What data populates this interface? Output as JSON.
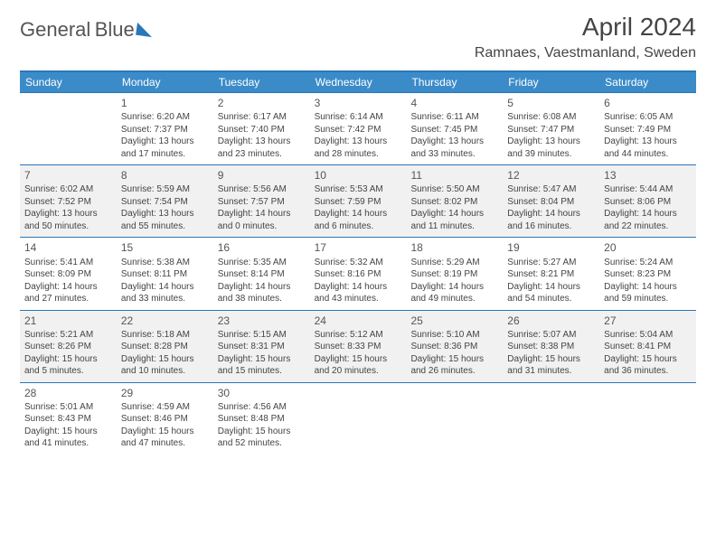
{
  "brand": {
    "line1": "General",
    "line2": "Blue"
  },
  "title": "April 2024",
  "location": "Ramnaes, Vaestmanland, Sweden",
  "day_headers": [
    "Sunday",
    "Monday",
    "Tuesday",
    "Wednesday",
    "Thursday",
    "Friday",
    "Saturday"
  ],
  "colors": {
    "header_bar": "#3b8bc9",
    "rule": "#2a77b8",
    "shaded_row_bg": "#f1f1f1",
    "text": "#444444",
    "background": "#ffffff"
  },
  "typography": {
    "title_fontsize": 28,
    "location_fontsize": 16,
    "dow_fontsize": 12,
    "daynum_fontsize": 12,
    "cell_fontsize": 10
  },
  "weeks": [
    {
      "shaded": false,
      "days": [
        null,
        {
          "n": "1",
          "sunrise": "6:20 AM",
          "sunset": "7:37 PM",
          "daylight": "13 hours and 17 minutes."
        },
        {
          "n": "2",
          "sunrise": "6:17 AM",
          "sunset": "7:40 PM",
          "daylight": "13 hours and 23 minutes."
        },
        {
          "n": "3",
          "sunrise": "6:14 AM",
          "sunset": "7:42 PM",
          "daylight": "13 hours and 28 minutes."
        },
        {
          "n": "4",
          "sunrise": "6:11 AM",
          "sunset": "7:45 PM",
          "daylight": "13 hours and 33 minutes."
        },
        {
          "n": "5",
          "sunrise": "6:08 AM",
          "sunset": "7:47 PM",
          "daylight": "13 hours and 39 minutes."
        },
        {
          "n": "6",
          "sunrise": "6:05 AM",
          "sunset": "7:49 PM",
          "daylight": "13 hours and 44 minutes."
        }
      ]
    },
    {
      "shaded": true,
      "days": [
        {
          "n": "7",
          "sunrise": "6:02 AM",
          "sunset": "7:52 PM",
          "daylight": "13 hours and 50 minutes."
        },
        {
          "n": "8",
          "sunrise": "5:59 AM",
          "sunset": "7:54 PM",
          "daylight": "13 hours and 55 minutes."
        },
        {
          "n": "9",
          "sunrise": "5:56 AM",
          "sunset": "7:57 PM",
          "daylight": "14 hours and 0 minutes."
        },
        {
          "n": "10",
          "sunrise": "5:53 AM",
          "sunset": "7:59 PM",
          "daylight": "14 hours and 6 minutes."
        },
        {
          "n": "11",
          "sunrise": "5:50 AM",
          "sunset": "8:02 PM",
          "daylight": "14 hours and 11 minutes."
        },
        {
          "n": "12",
          "sunrise": "5:47 AM",
          "sunset": "8:04 PM",
          "daylight": "14 hours and 16 minutes."
        },
        {
          "n": "13",
          "sunrise": "5:44 AM",
          "sunset": "8:06 PM",
          "daylight": "14 hours and 22 minutes."
        }
      ]
    },
    {
      "shaded": false,
      "days": [
        {
          "n": "14",
          "sunrise": "5:41 AM",
          "sunset": "8:09 PM",
          "daylight": "14 hours and 27 minutes."
        },
        {
          "n": "15",
          "sunrise": "5:38 AM",
          "sunset": "8:11 PM",
          "daylight": "14 hours and 33 minutes."
        },
        {
          "n": "16",
          "sunrise": "5:35 AM",
          "sunset": "8:14 PM",
          "daylight": "14 hours and 38 minutes."
        },
        {
          "n": "17",
          "sunrise": "5:32 AM",
          "sunset": "8:16 PM",
          "daylight": "14 hours and 43 minutes."
        },
        {
          "n": "18",
          "sunrise": "5:29 AM",
          "sunset": "8:19 PM",
          "daylight": "14 hours and 49 minutes."
        },
        {
          "n": "19",
          "sunrise": "5:27 AM",
          "sunset": "8:21 PM",
          "daylight": "14 hours and 54 minutes."
        },
        {
          "n": "20",
          "sunrise": "5:24 AM",
          "sunset": "8:23 PM",
          "daylight": "14 hours and 59 minutes."
        }
      ]
    },
    {
      "shaded": true,
      "days": [
        {
          "n": "21",
          "sunrise": "5:21 AM",
          "sunset": "8:26 PM",
          "daylight": "15 hours and 5 minutes."
        },
        {
          "n": "22",
          "sunrise": "5:18 AM",
          "sunset": "8:28 PM",
          "daylight": "15 hours and 10 minutes."
        },
        {
          "n": "23",
          "sunrise": "5:15 AM",
          "sunset": "8:31 PM",
          "daylight": "15 hours and 15 minutes."
        },
        {
          "n": "24",
          "sunrise": "5:12 AM",
          "sunset": "8:33 PM",
          "daylight": "15 hours and 20 minutes."
        },
        {
          "n": "25",
          "sunrise": "5:10 AM",
          "sunset": "8:36 PM",
          "daylight": "15 hours and 26 minutes."
        },
        {
          "n": "26",
          "sunrise": "5:07 AM",
          "sunset": "8:38 PM",
          "daylight": "15 hours and 31 minutes."
        },
        {
          "n": "27",
          "sunrise": "5:04 AM",
          "sunset": "8:41 PM",
          "daylight": "15 hours and 36 minutes."
        }
      ]
    },
    {
      "shaded": false,
      "days": [
        {
          "n": "28",
          "sunrise": "5:01 AM",
          "sunset": "8:43 PM",
          "daylight": "15 hours and 41 minutes."
        },
        {
          "n": "29",
          "sunrise": "4:59 AM",
          "sunset": "8:46 PM",
          "daylight": "15 hours and 47 minutes."
        },
        {
          "n": "30",
          "sunrise": "4:56 AM",
          "sunset": "8:48 PM",
          "daylight": "15 hours and 52 minutes."
        },
        null,
        null,
        null,
        null
      ]
    }
  ],
  "labels": {
    "sunrise_prefix": "Sunrise: ",
    "sunset_prefix": "Sunset: ",
    "daylight_prefix": "Daylight: "
  }
}
